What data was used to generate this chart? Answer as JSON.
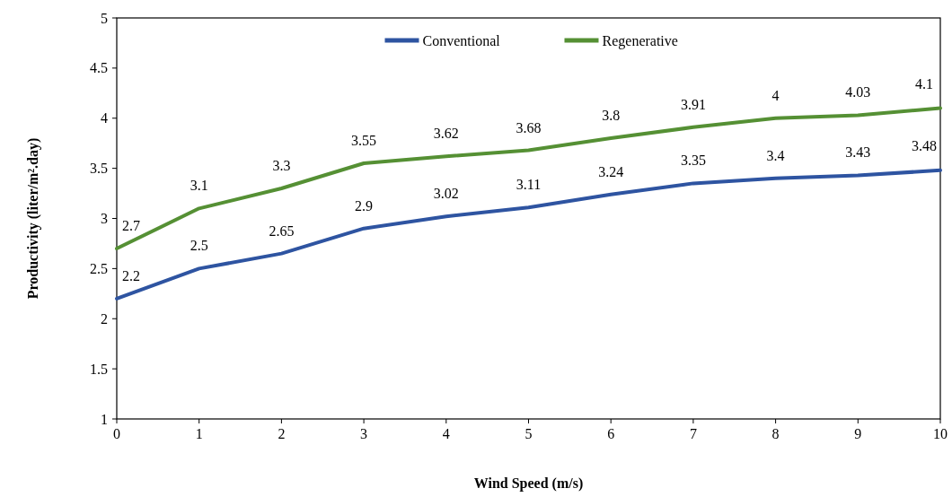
{
  "chart_data": {
    "type": "line",
    "xlabel": "Wind Speed (m/s)",
    "ylabel": "Productivity (liter/m².day)",
    "x": [
      0,
      1,
      2,
      3,
      4,
      5,
      6,
      7,
      8,
      9,
      10
    ],
    "series": [
      {
        "name": "Conventional",
        "color": "#2e54a1",
        "values": [
          2.2,
          2.5,
          2.65,
          2.9,
          3.02,
          3.11,
          3.24,
          3.35,
          3.4,
          3.43,
          3.48
        ]
      },
      {
        "name": "Regenerative",
        "color": "#559034",
        "values": [
          2.7,
          3.1,
          3.3,
          3.55,
          3.62,
          3.68,
          3.8,
          3.91,
          4,
          4.03,
          4.1
        ]
      }
    ],
    "xlim": [
      0,
      10
    ],
    "xticks": [
      0,
      1,
      2,
      3,
      4,
      5,
      6,
      7,
      8,
      9,
      10
    ],
    "ylim": [
      1,
      5
    ],
    "yticks": [
      1,
      1.5,
      2,
      2.5,
      3,
      3.5,
      4,
      4.5,
      5
    ],
    "data_labels": true,
    "legend": "top",
    "grid": false,
    "marker": "none",
    "line_style": "solid"
  }
}
